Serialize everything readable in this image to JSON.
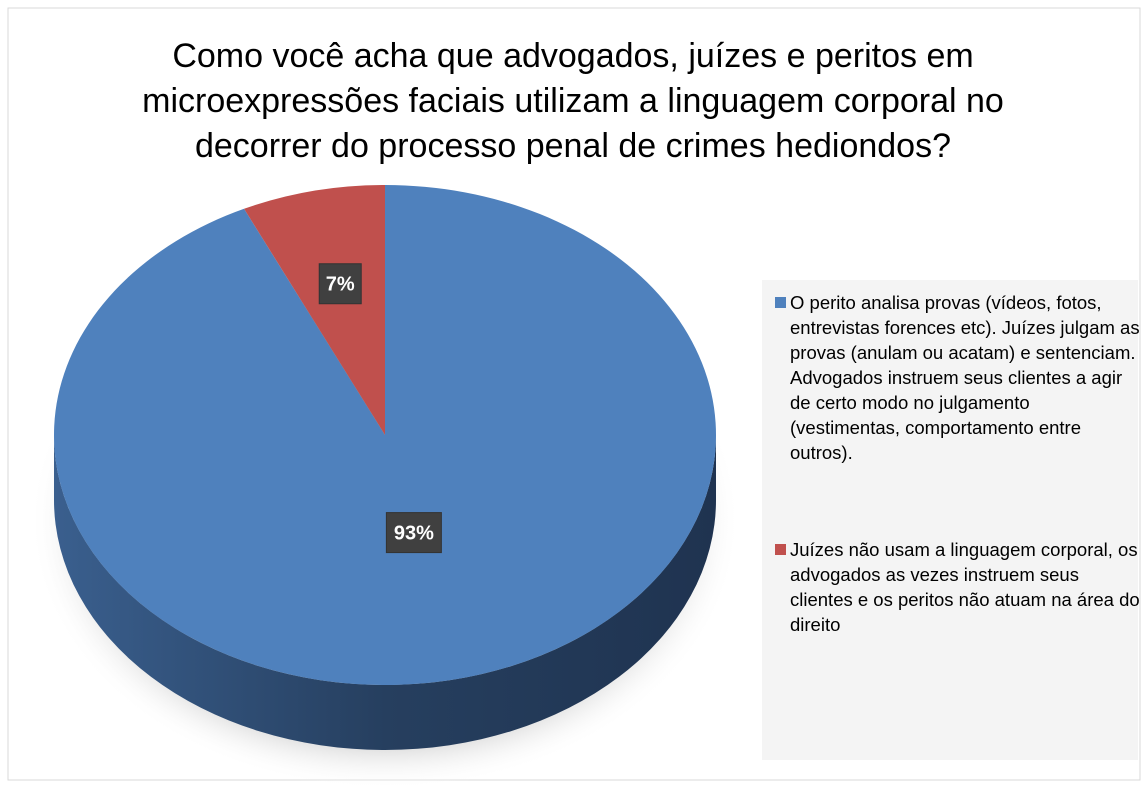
{
  "chart_data": {
    "type": "pie",
    "title": "Como você acha que advogados, juízes e peritos em microexpressões faciais utilizam a linguagem corporal no decorrer do processo penal de crimes hediondos?",
    "categories": [
      "O perito analisa provas (vídeos, fotos, entrevistas forences etc). Juízes julgam as provas (anulam ou acatam) e sentenciam. Advogados instruem seus clientes a agir de certo modo no julgamento (vestimentas, comportamento entre outros).",
      "Juízes não usam a linguagem corporal, os advogados as vezes instruem seus clientes e os peritos não atuam na área do direito"
    ],
    "values": [
      93,
      7
    ],
    "value_labels": [
      "93%",
      "7%"
    ],
    "colors": [
      "#4f81bd",
      "#c0504d"
    ],
    "legend": "right"
  }
}
